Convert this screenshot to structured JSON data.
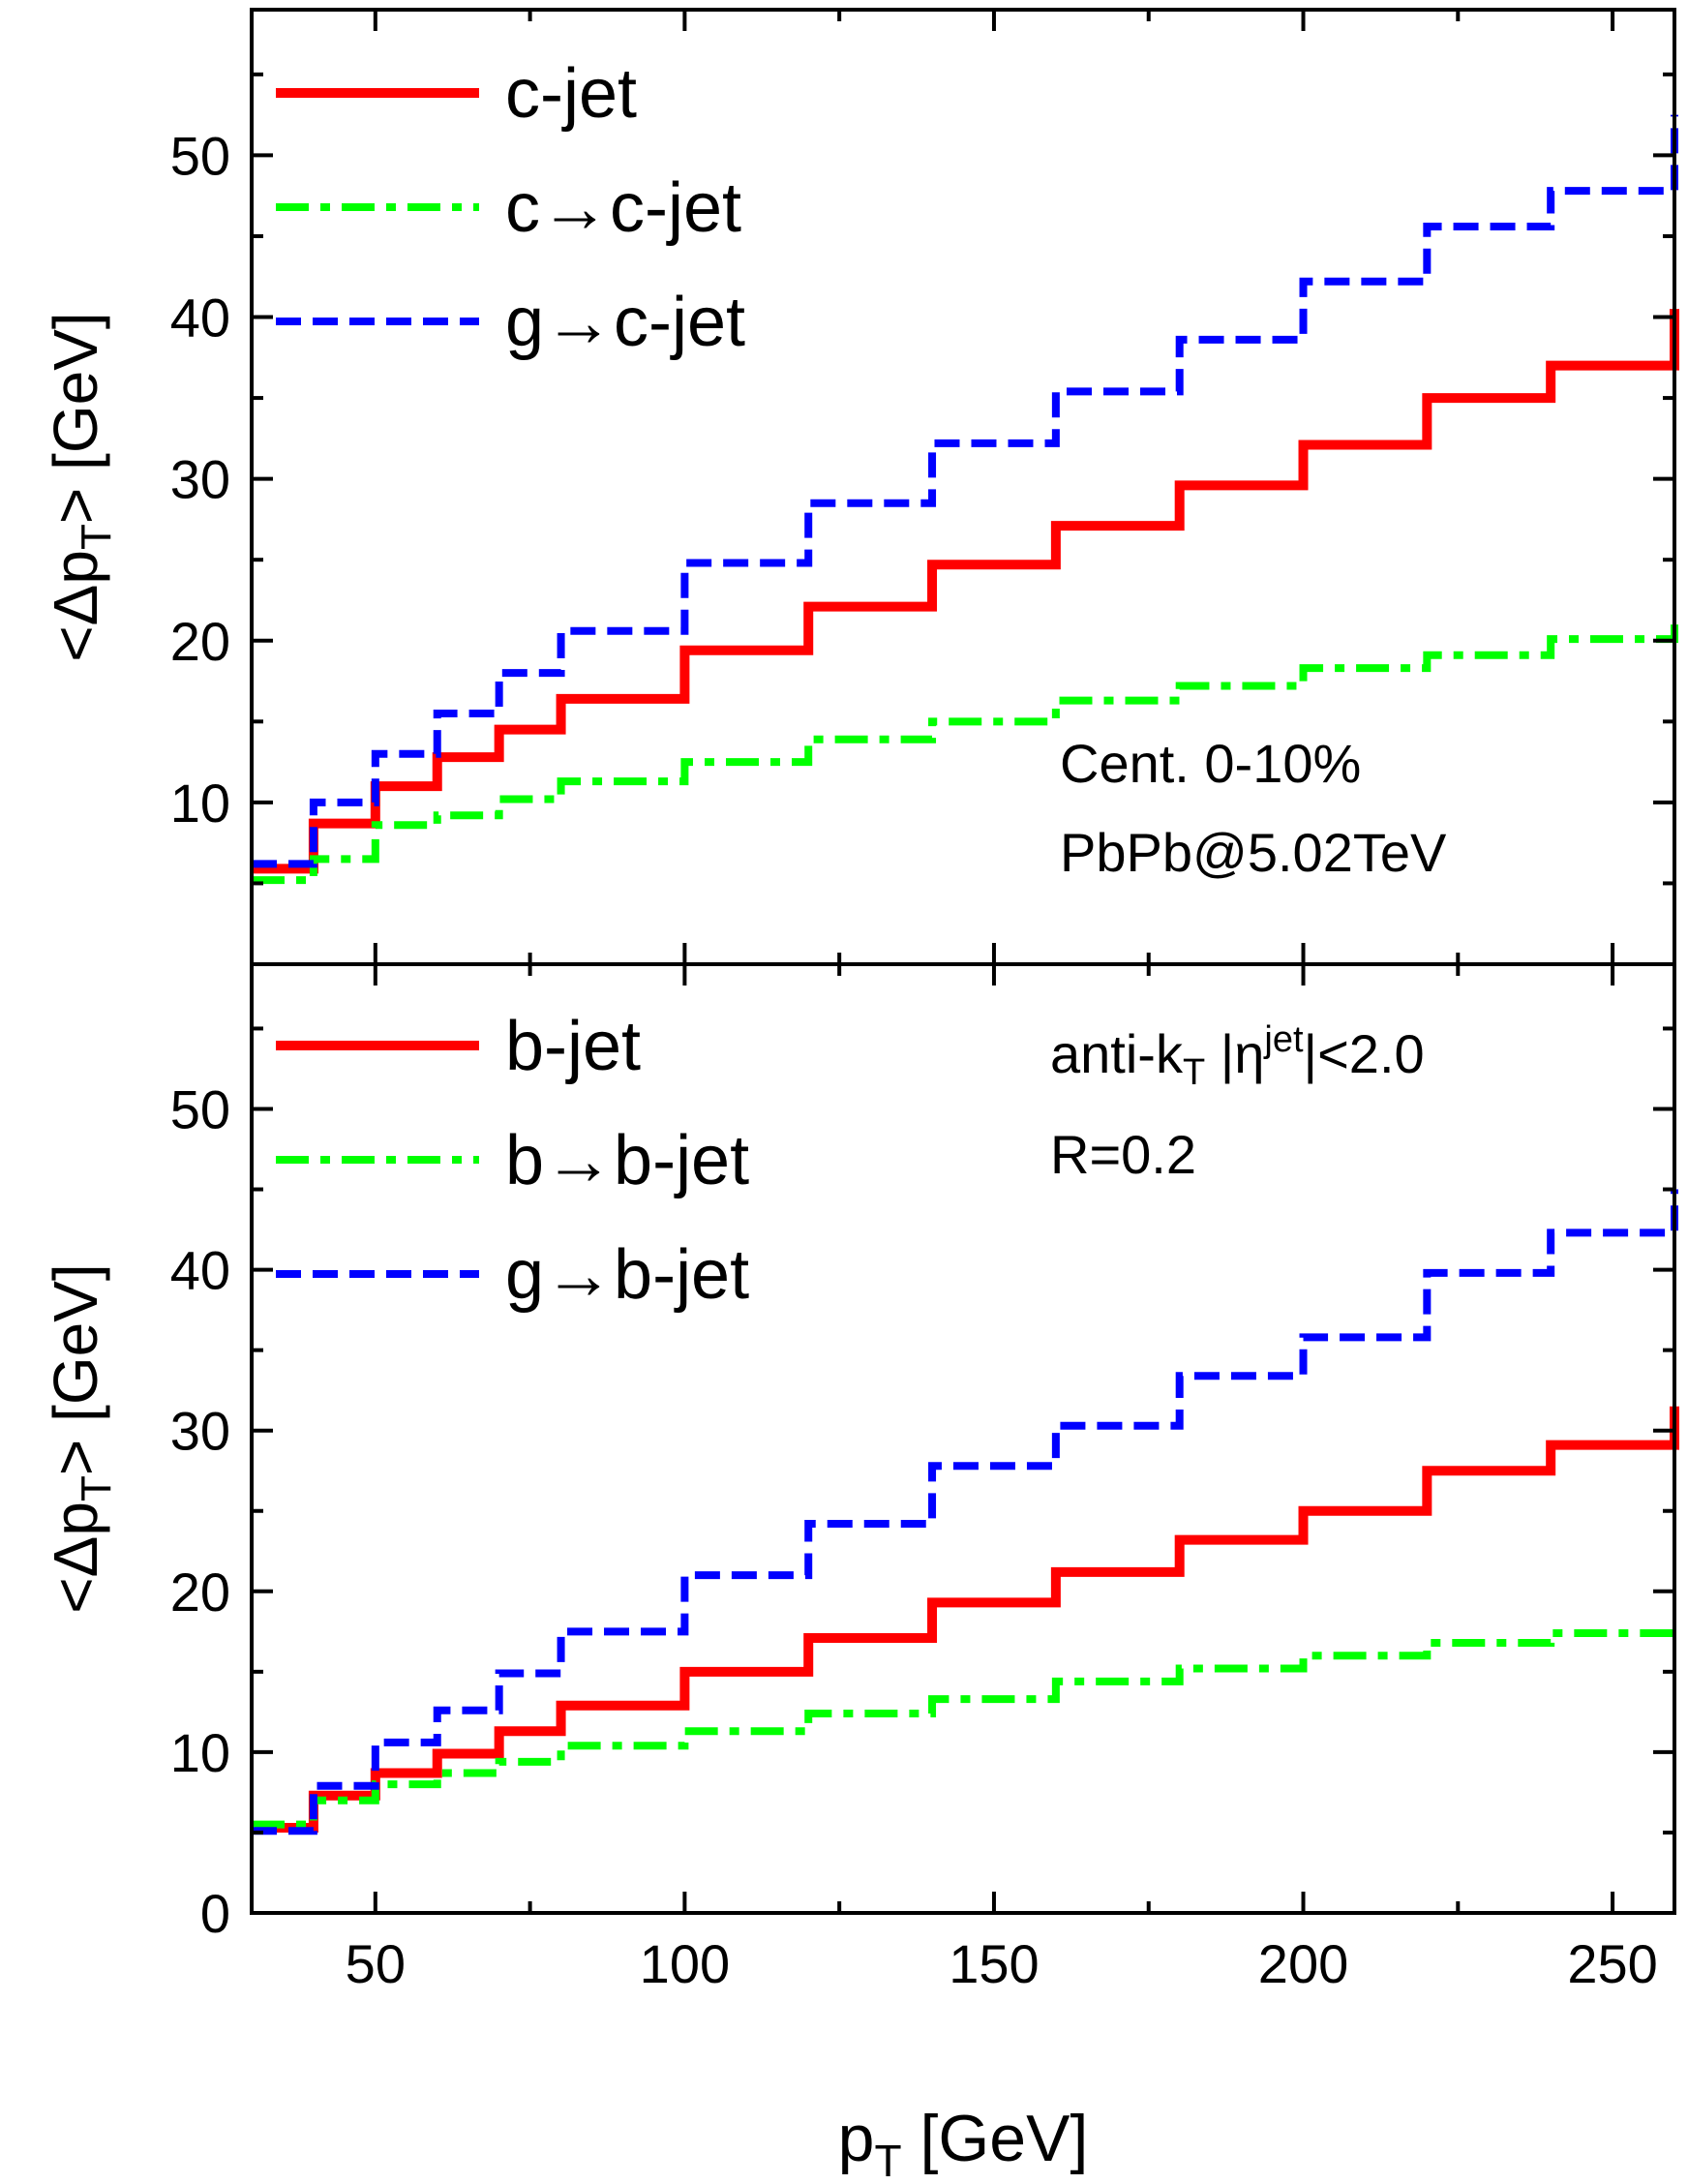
{
  "chart_data": [
    {
      "type": "line",
      "panel": "top",
      "ylabel": "<Δp_T> [GeV]",
      "xlim": [
        30,
        260
      ],
      "ylim": [
        0,
        59
      ],
      "yticks": [
        10,
        20,
        30,
        40,
        50
      ],
      "grid": false,
      "legend_position": "top-left",
      "annotations": [
        "Cent. 0-10%",
        "PbPb@5.02TeV"
      ],
      "bin_edges": [
        30,
        40,
        50,
        60,
        70,
        80,
        100,
        120,
        140,
        160,
        180,
        200,
        220,
        240,
        260
      ],
      "series": [
        {
          "name": "c-jet",
          "color": "#ff0000",
          "style": "solid",
          "values": [
            5.9,
            8.7,
            11.0,
            12.8,
            14.5,
            16.4,
            19.4,
            22.1,
            24.7,
            27.1,
            29.6,
            32.1,
            35.0,
            37.0
          ],
          "end_value": 40.5
        },
        {
          "name": "c→c-jet",
          "color": "#00ff00",
          "style": "dashdot",
          "values": [
            5.2,
            6.5,
            8.6,
            9.2,
            10.2,
            11.3,
            12.5,
            13.9,
            15.0,
            16.3,
            17.2,
            18.3,
            19.1,
            20.1
          ],
          "end_value": 21.3
        },
        {
          "name": "g→c-jet",
          "color": "#0000ff",
          "style": "dashed",
          "values": [
            6.2,
            10.0,
            13.0,
            15.5,
            18.0,
            20.6,
            24.8,
            28.5,
            32.2,
            35.4,
            38.6,
            42.2,
            45.6,
            47.8
          ],
          "end_value": 52.5
        }
      ]
    },
    {
      "type": "line",
      "panel": "bottom",
      "ylabel": "<Δp_T> [GeV]",
      "xlabel": "p_T [GeV]",
      "xlim": [
        30,
        260
      ],
      "ylim": [
        0,
        59
      ],
      "xticks": [
        50,
        100,
        150,
        200,
        250
      ],
      "yticks": [
        0,
        10,
        20,
        30,
        40,
        50
      ],
      "grid": false,
      "legend_position": "top-left",
      "annotations": [
        "anti-k_T |η^jet|<2.0",
        "R=0.2"
      ],
      "bin_edges": [
        30,
        40,
        50,
        60,
        70,
        80,
        100,
        120,
        140,
        160,
        180,
        200,
        220,
        240,
        260
      ],
      "series": [
        {
          "name": "b-jet",
          "color": "#ff0000",
          "style": "solid",
          "values": [
            5.3,
            7.3,
            8.7,
            9.9,
            11.3,
            12.9,
            15.0,
            17.1,
            19.3,
            21.2,
            23.2,
            25.0,
            27.5,
            29.1
          ],
          "end_value": 31.5
        },
        {
          "name": "b→b-jet",
          "color": "#00ff00",
          "style": "dashdot",
          "values": [
            5.5,
            7.0,
            8.0,
            8.7,
            9.4,
            10.4,
            11.3,
            12.4,
            13.3,
            14.4,
            15.2,
            16.0,
            16.8,
            17.4
          ],
          "end_value": 17.4
        },
        {
          "name": "g→b-jet",
          "color": "#0000ff",
          "style": "dashed",
          "values": [
            5.1,
            7.9,
            10.6,
            12.6,
            14.9,
            17.5,
            21.0,
            24.2,
            27.8,
            30.3,
            33.4,
            35.8,
            39.8,
            42.3
          ],
          "end_value": 45.0
        }
      ]
    }
  ],
  "text": {
    "ylabel_prefix": "<Δp",
    "ylabel_sub": "T",
    "ylabel_suffix": "> [GeV]",
    "xlabel_main": "p",
    "xlabel_sub": "T",
    "xlabel_suffix": " [GeV]",
    "top_annotation_1": "Cent. 0-10%",
    "top_annotation_2": "PbPb@5.02TeV",
    "bottom_annotation_1_a": "anti-k",
    "bottom_annotation_1_sub": "T",
    "bottom_annotation_1_b": " |η",
    "bottom_annotation_1_sup": "jet",
    "bottom_annotation_1_c": "|<2.0",
    "bottom_annotation_2": "R=0.2"
  }
}
